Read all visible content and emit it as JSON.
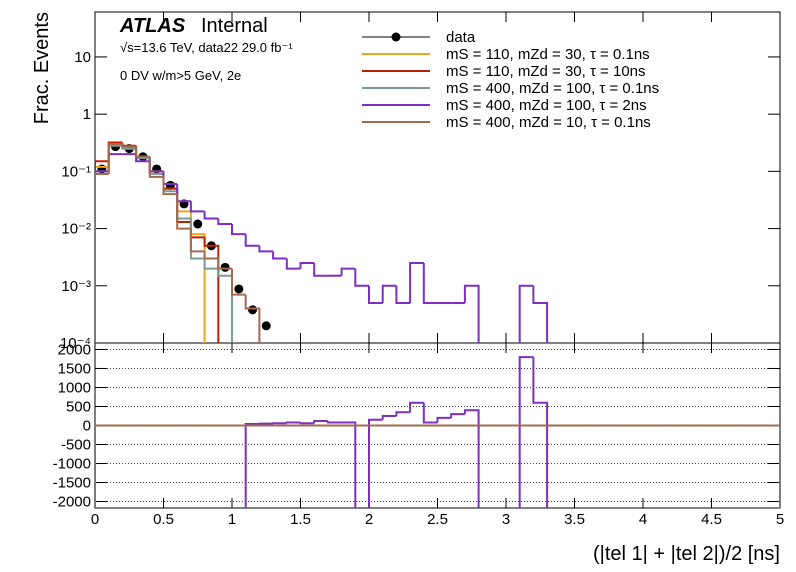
{
  "chart_data": [
    {
      "type": "histogram",
      "log_y": true,
      "atlas_label": "ATLAS",
      "status": "Internal",
      "subtitle": "√s=13.6 TeV, data22 29.0 fb⁻¹",
      "selection": "0 DV w/m>5 GeV, 2e",
      "ylabel": "Frac. Events",
      "xlim": [
        0,
        5
      ],
      "ylim": [
        0.0001,
        61
      ],
      "yticks": [
        {
          "value": 0.0001,
          "label": "10⁻⁴"
        },
        {
          "value": 0.001,
          "label": "10⁻³"
        },
        {
          "value": 0.01,
          "label": "10⁻²"
        },
        {
          "value": 0.1,
          "label": "10⁻¹"
        },
        1,
        10
      ],
      "bins": [
        0,
        0.1,
        0.2,
        0.3,
        0.4,
        0.5,
        0.6,
        0.7,
        0.8,
        0.9,
        1,
        1.1,
        1.2,
        1.3,
        1.4,
        1.5,
        1.6,
        1.7,
        1.8,
        1.9,
        2,
        2.1,
        2.2,
        2.3,
        2.4,
        2.5,
        2.6,
        2.7,
        2.8,
        2.9,
        3,
        3.1,
        3.2,
        3.3,
        3.4,
        3.5
      ],
      "series": [
        {
          "name": "data",
          "style": "points",
          "color": "#000000",
          "values": [
            0.11,
            0.27,
            0.25,
            0.18,
            0.11,
            0.057,
            0.027,
            0.012,
            0.005,
            0.0021,
            0.00088,
            0.00038,
            0.0002,
            null,
            null,
            null,
            null,
            null,
            null,
            null,
            null,
            null,
            null,
            null,
            null,
            null,
            null,
            null,
            null,
            null,
            null,
            null,
            null,
            null,
            null
          ]
        },
        {
          "name": "mS = 110, mZd = 30, τ = 0.1ns",
          "style": "step",
          "color": "#f2a51a",
          "values": [
            0.12,
            0.3,
            0.25,
            0.18,
            0.1,
            0.05,
            0.02,
            0.008,
            null,
            null,
            null,
            null,
            null,
            null,
            null,
            null,
            null,
            null,
            null,
            null,
            null,
            null,
            null,
            null,
            null,
            null,
            null,
            null,
            null,
            null,
            null,
            null,
            null,
            null,
            null
          ]
        },
        {
          "name": "mS = 110, mZd = 30, τ = 10ns",
          "style": "step",
          "color": "#c01f00",
          "values": [
            0.15,
            0.32,
            0.28,
            0.17,
            0.1,
            0.05,
            0.013,
            0.007,
            0.005,
            null,
            null,
            null,
            null,
            null,
            null,
            null,
            null,
            null,
            null,
            null,
            null,
            null,
            null,
            null,
            null,
            null,
            null,
            null,
            null,
            null,
            null,
            null,
            null,
            null,
            null
          ]
        },
        {
          "name": "mS = 400, mZd = 100, τ = 0.1ns",
          "style": "step",
          "color": "#7c9a9a",
          "values": [
            0.1,
            0.28,
            0.25,
            0.17,
            0.09,
            0.045,
            0.015,
            0.003,
            0.002,
            0.0015,
            null,
            null,
            null,
            null,
            null,
            null,
            null,
            null,
            null,
            null,
            null,
            null,
            null,
            null,
            null,
            null,
            null,
            null,
            null,
            null,
            null,
            null,
            null,
            null,
            null
          ]
        },
        {
          "name": "mS = 400, mZd = 100, τ = 2ns",
          "style": "step",
          "color": "#7d2fc4",
          "values": [
            0.1,
            0.2,
            0.2,
            0.15,
            0.1,
            0.06,
            0.03,
            0.02,
            0.015,
            0.012,
            0.008,
            0.005,
            0.004,
            0.003,
            0.002,
            0.0025,
            0.0015,
            0.0015,
            0.002,
            0.001,
            0.0005,
            0.001,
            0.0005,
            0.0025,
            0.0005,
            0.0005,
            0.0005,
            0.001,
            null,
            null,
            null,
            0.001,
            0.0005,
            null,
            null
          ]
        },
        {
          "name": "mS = 400, mZd = 10, τ = 0.1ns",
          "style": "step",
          "color": "#a36b4c",
          "values": [
            0.09,
            0.3,
            0.27,
            0.18,
            0.08,
            0.04,
            0.01,
            0.004,
            0.003,
            0.002,
            0.0007,
            0.0004,
            null,
            null,
            null,
            null,
            null,
            null,
            null,
            null,
            null,
            null,
            null,
            null,
            null,
            null,
            null,
            null,
            null,
            null,
            null,
            null,
            null,
            null,
            null
          ]
        }
      ]
    },
    {
      "type": "histogram",
      "log_y": false,
      "grid": true,
      "xlabel": "(|tel 1| + |tel 2|)/2 [ns]",
      "xlim": [
        0,
        5
      ],
      "ylim": [
        -2170,
        2170
      ],
      "xticks": [
        0,
        0.5,
        1,
        1.5,
        2,
        2.5,
        3,
        3.5,
        4,
        4.5,
        5
      ],
      "yticks": [
        -2000,
        -1500,
        -1000,
        -500,
        0,
        500,
        1000,
        1500,
        2000
      ],
      "bins": [
        0,
        0.1,
        0.2,
        0.3,
        0.4,
        0.5,
        0.6,
        0.7,
        0.8,
        0.9,
        1,
        1.1,
        1.2,
        1.3,
        1.4,
        1.5,
        1.6,
        1.7,
        1.8,
        1.9,
        2,
        2.1,
        2.2,
        2.3,
        2.4,
        2.5,
        2.6,
        2.7,
        2.8,
        2.9,
        3,
        3.1,
        3.2,
        3.3,
        3.4,
        3.5,
        3.6,
        3.7,
        3.8,
        3.9,
        4,
        4.1,
        4.2,
        4.3,
        4.4,
        4.5,
        4.6,
        4.7,
        4.8,
        4.9,
        5
      ],
      "series": [
        {
          "style": "step",
          "color": "#7d2fc4",
          "values": [
            null,
            null,
            null,
            null,
            null,
            null,
            null,
            null,
            null,
            null,
            null,
            40,
            50,
            60,
            80,
            60,
            120,
            80,
            80,
            null,
            150,
            250,
            350,
            600,
            80,
            200,
            300,
            400,
            null,
            null,
            null,
            1800,
            600,
            null,
            null,
            null,
            null,
            null,
            null,
            null,
            null,
            null,
            null,
            null,
            null,
            null,
            null,
            null,
            null,
            null
          ]
        },
        {
          "style": "step",
          "color": "#a36b4c",
          "values": [
            0,
            0,
            0,
            0,
            0,
            0,
            0,
            0,
            0,
            0,
            0,
            0,
            0,
            0,
            0,
            0,
            0,
            0,
            0,
            0,
            0,
            0,
            0,
            0,
            0,
            0,
            0,
            0,
            0,
            0,
            0,
            0,
            0,
            0,
            0,
            0,
            0,
            0,
            0,
            0,
            0,
            0,
            0,
            0,
            0,
            0,
            0,
            0,
            0,
            0
          ]
        }
      ]
    }
  ]
}
